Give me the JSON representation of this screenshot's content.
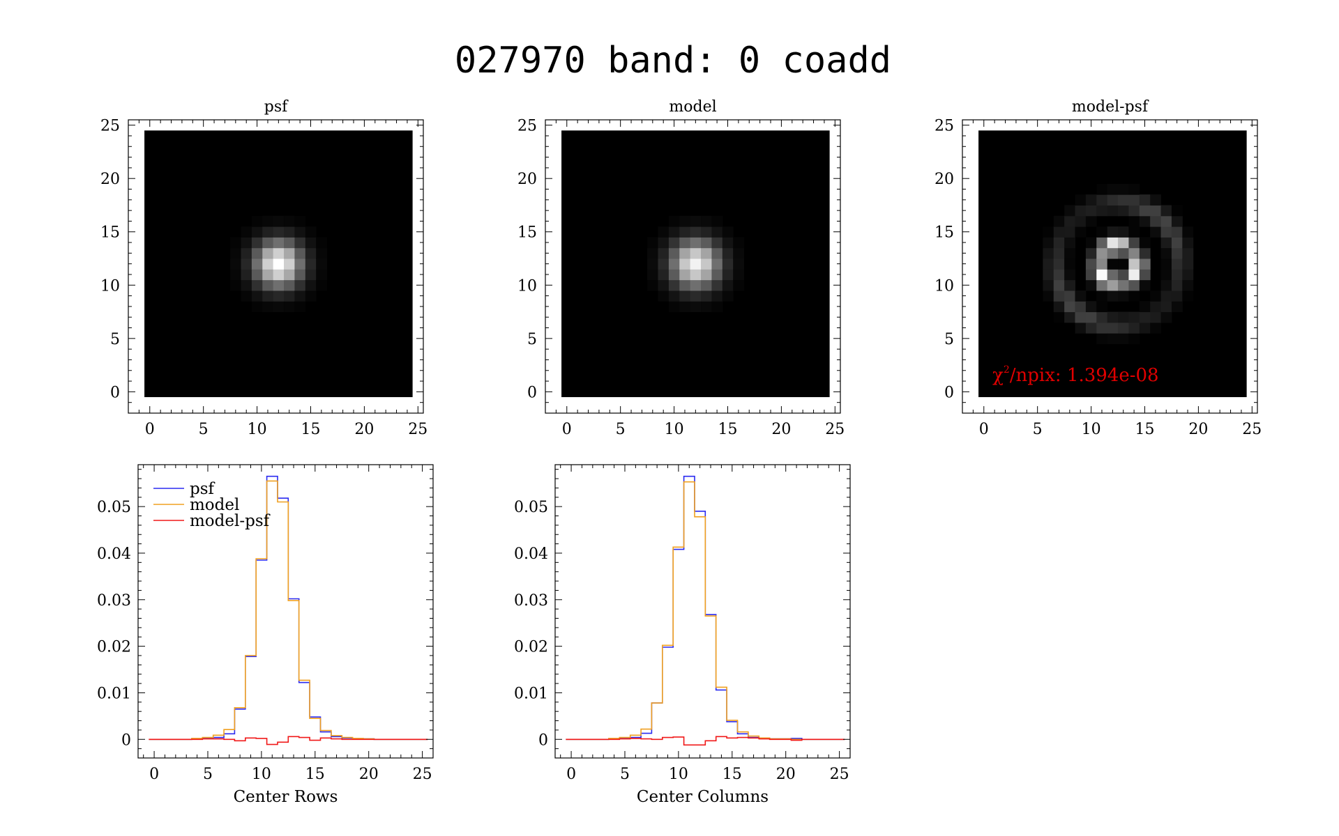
{
  "figure": {
    "title": "027970 band: 0 coadd"
  },
  "colors": {
    "psf": "#2a2af0",
    "model": "#f0a020",
    "model_psf": "#f01818",
    "annotation": "#e00000",
    "background": "#ffffff",
    "axis": "#000000"
  },
  "chart_data": [
    {
      "type": "heatmap",
      "title": "psf",
      "xlim": [
        -2,
        25.5
      ],
      "ylim": [
        -2,
        25.5
      ],
      "xticks": [
        0,
        5,
        10,
        15,
        20,
        25
      ],
      "yticks": [
        0,
        5,
        10,
        15,
        20,
        25
      ],
      "grid_size": 25,
      "colormap": "grayscale",
      "description": "compact bright central peak near pixel (12, 12) fading to black"
    },
    {
      "type": "heatmap",
      "title": "model",
      "xlim": [
        -2,
        25.5
      ],
      "ylim": [
        -2,
        25.5
      ],
      "xticks": [
        0,
        5,
        10,
        15,
        20,
        25
      ],
      "yticks": [
        0,
        5,
        10,
        15,
        20,
        25
      ],
      "grid_size": 25,
      "colormap": "grayscale",
      "description": "compact bright central peak near pixel (12, 12) fading to black"
    },
    {
      "type": "heatmap",
      "title": "model-psf",
      "xlim": [
        -2,
        25.5
      ],
      "ylim": [
        -2,
        25.5
      ],
      "xticks": [
        0,
        5,
        10,
        15,
        20,
        25
      ],
      "yticks": [
        0,
        5,
        10,
        15,
        20,
        25
      ],
      "grid_size": 25,
      "colormap": "grayscale",
      "annotation": {
        "text_symbol": "χ",
        "text_superscript": "2",
        "text": "/npix: 1.394e-08",
        "color": "#e00000"
      },
      "description": "bright ring of residuals around center with a faint outer ring"
    },
    {
      "type": "line",
      "style": "step",
      "xlabel": "Center Rows",
      "ylabel": "",
      "xlim": [
        -1.5,
        26
      ],
      "ylim": [
        -0.004,
        0.059
      ],
      "xticks": [
        0,
        5,
        10,
        15,
        20,
        25
      ],
      "yticks": [
        0,
        0.01,
        0.02,
        0.03,
        0.04,
        0.05
      ],
      "ytick_labels": [
        "0",
        "0.01",
        "0.02",
        "0.03",
        "0.04",
        "0.05"
      ],
      "legend": "top-left",
      "x": [
        0,
        1,
        2,
        3,
        4,
        5,
        6,
        7,
        8,
        9,
        10,
        11,
        12,
        13,
        14,
        15,
        16,
        17,
        18,
        19,
        20,
        21,
        22,
        23,
        24,
        25
      ],
      "series": [
        {
          "name": "psf",
          "color": "#2a2af0",
          "values": [
            0,
            0,
            0,
            0,
            0.0001,
            0.0002,
            0.0004,
            0.0012,
            0.0065,
            0.0178,
            0.0385,
            0.0565,
            0.0518,
            0.0302,
            0.0122,
            0.0048,
            0.0016,
            0.0006,
            0.0003,
            0.0001,
            0.0001,
            0,
            0,
            0,
            0,
            0
          ]
        },
        {
          "name": "model",
          "color": "#f0a020",
          "values": [
            0,
            0,
            0,
            0,
            0.0002,
            0.0004,
            0.0009,
            0.0021,
            0.0068,
            0.018,
            0.0388,
            0.0555,
            0.051,
            0.0298,
            0.0127,
            0.0045,
            0.0019,
            0.0008,
            0.0004,
            0.0002,
            0.0001,
            0,
            0,
            0,
            0,
            0
          ]
        },
        {
          "name": "model-psf",
          "color": "#f01818",
          "values": [
            0,
            0,
            0,
            0,
            0,
            0.0001,
            0.0001,
            0,
            -0.0003,
            0.0003,
            0.0002,
            -0.0011,
            -0.0006,
            0.0006,
            0.0004,
            -0.0002,
            0.0003,
            0.0001,
            0,
            0,
            0,
            0,
            0,
            0,
            0,
            0
          ]
        }
      ]
    },
    {
      "type": "line",
      "style": "step",
      "xlabel": "Center Columns",
      "ylabel": "",
      "xlim": [
        -1.5,
        26
      ],
      "ylim": [
        -0.004,
        0.059
      ],
      "xticks": [
        0,
        5,
        10,
        15,
        20,
        25
      ],
      "yticks": [
        0,
        0.01,
        0.02,
        0.03,
        0.04,
        0.05
      ],
      "ytick_labels": [
        "0",
        "0.01",
        "0.02",
        "0.03",
        "0.04",
        "0.05"
      ],
      "x": [
        0,
        1,
        2,
        3,
        4,
        5,
        6,
        7,
        8,
        9,
        10,
        11,
        12,
        13,
        14,
        15,
        16,
        17,
        18,
        19,
        20,
        21,
        22,
        23,
        24,
        25
      ],
      "series": [
        {
          "name": "psf",
          "color": "#2a2af0",
          "values": [
            0,
            0,
            0,
            0,
            0.0001,
            0.0002,
            0.0004,
            0.0013,
            0.0078,
            0.0198,
            0.0408,
            0.0565,
            0.049,
            0.0268,
            0.0106,
            0.0038,
            0.0012,
            0.0004,
            0.0002,
            0.0001,
            0.0001,
            0.0002,
            0,
            0,
            0,
            0
          ]
        },
        {
          "name": "model",
          "color": "#f0a020",
          "values": [
            0,
            0,
            0,
            0,
            0.0002,
            0.0004,
            0.0009,
            0.0022,
            0.0078,
            0.0202,
            0.0413,
            0.0553,
            0.0478,
            0.0265,
            0.0112,
            0.0041,
            0.0016,
            0.0007,
            0.0003,
            0.0001,
            0.0001,
            0,
            0,
            0,
            0,
            0
          ]
        },
        {
          "name": "model-psf",
          "color": "#f01818",
          "values": [
            0,
            0,
            0,
            0,
            0,
            0.0001,
            0.0002,
            0.0001,
            0,
            0.0004,
            0.0005,
            -0.0012,
            -0.0012,
            -0.0003,
            0.0006,
            0.0003,
            0.0004,
            0.0003,
            0.0001,
            0,
            0,
            -0.0002,
            0,
            0,
            0,
            0
          ]
        }
      ]
    }
  ]
}
